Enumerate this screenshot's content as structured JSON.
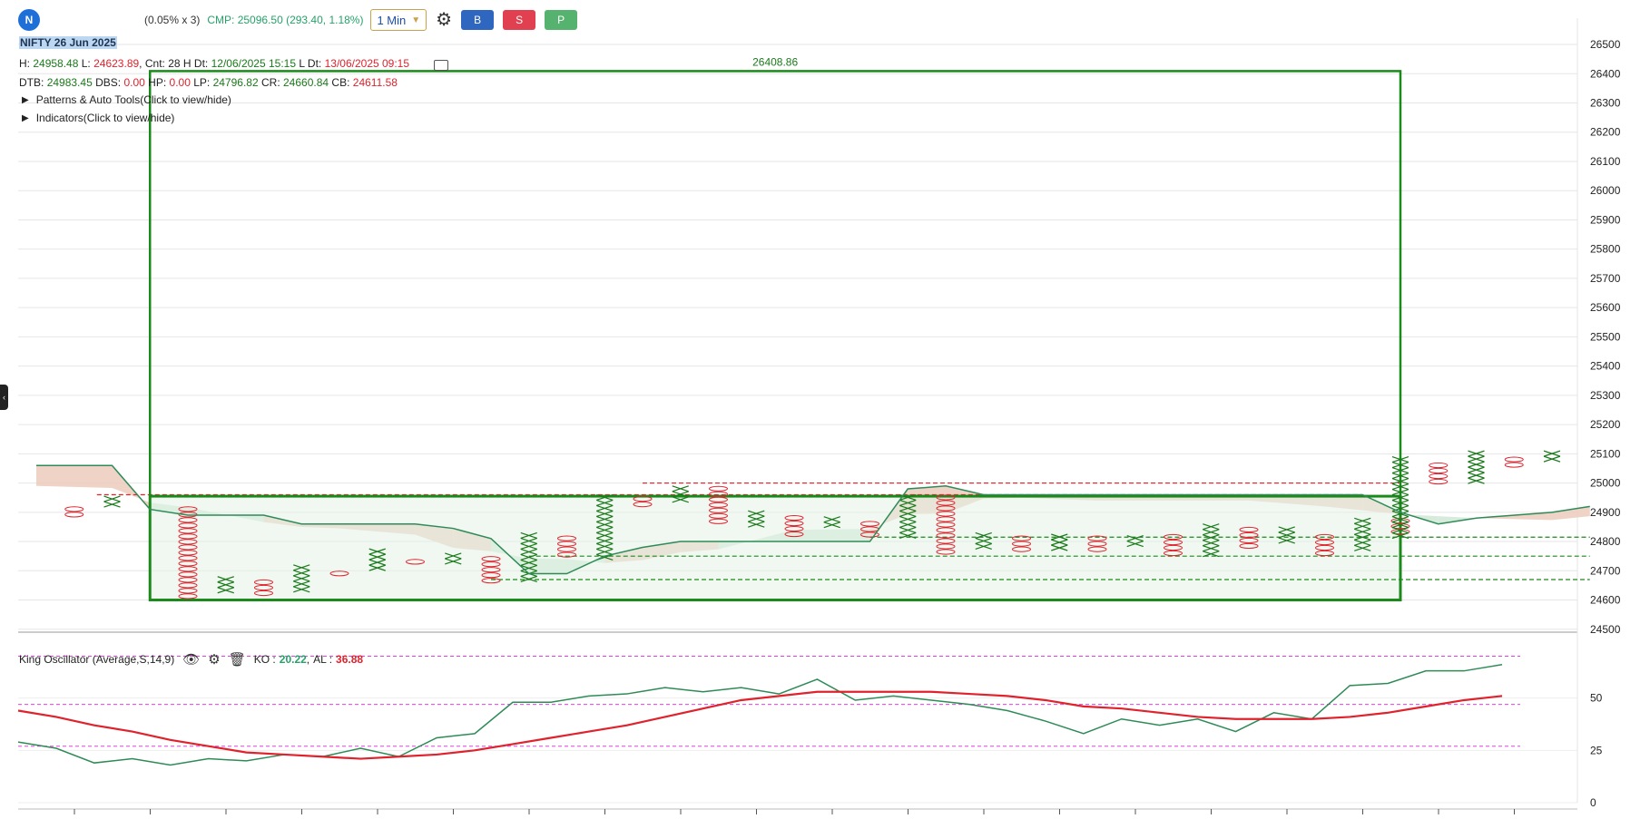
{
  "toolbar": {
    "symbol_badge": "N",
    "box_multiplier": "(0.05% x 3)",
    "cmp": "CMP: 25096.50 (293.40, 1.18%)",
    "timeframe": "1 Min",
    "buy_label": "B",
    "sell_label": "S",
    "p_label": "P"
  },
  "header": {
    "title": "NIFTY 26 Jun 2025",
    "h_label": "H:",
    "h_value": "24958.48",
    "l_label": "L:",
    "l_value": "24623.89",
    "cnt_label": "Cnt: 28",
    "hdt_label": "H Dt:",
    "hdt_value": "12/06/2025 15:15",
    "ldt_label": "L Dt:",
    "ldt_value": "13/06/2025 09:15",
    "dtb_label": "DTB:",
    "dtb_value": "24983.45",
    "dbs_label": "DBS:",
    "dbs_value": "0.00",
    "hp_label": "HP:",
    "hp_value": "0.00",
    "lp_label": "LP:",
    "lp_value": "24796.82",
    "cr_label": "CR:",
    "cr_value": "24660.84",
    "cb_label": "CB:",
    "cb_value": "24611.58"
  },
  "expanders": {
    "patterns": "Patterns & Auto Tools(Click to view/hide)",
    "indicators": "Indicators(Click to view/hide)"
  },
  "oscillator": {
    "name": "King Oscillator (Average,S,14,9)",
    "ko_label": "KO :",
    "ko_value": "20.22",
    "al_label": "AL :",
    "al_value": "36.88"
  },
  "colors": {
    "x_column": "#1a7a1a",
    "o_column": "#e0222d",
    "box": "#1a8a1a",
    "cloud_green": "#cfe8d5",
    "cloud_red": "#eccbbd",
    "ko_line": "#2e8b57",
    "al_line": "#e0222d",
    "level_magenta": "#e040e0"
  },
  "chart_data": [
    {
      "type": "point-and-figure",
      "y_ticks": [
        24500,
        24600,
        24700,
        24800,
        24900,
        25000,
        25100,
        25200,
        25300,
        25400,
        25500,
        25600,
        25700,
        25800,
        25900,
        26000,
        26100,
        26200,
        26300,
        26400,
        26500
      ],
      "ylim": [
        24490,
        26590
      ],
      "box_target_label": "26408.86",
      "box_rect": {
        "col_start": 1.5,
        "col_end": 18.0,
        "y_low": 24600,
        "y_high": 26408.86
      },
      "inner_box": {
        "col_start": 1.5,
        "col_end": 18.0,
        "y_low": 24600,
        "y_high": 24955
      },
      "columns": [
        {
          "type": "O",
          "top": 24920,
          "bottom": 24890
        },
        {
          "type": "X",
          "top": 24955,
          "bottom": 24910
        },
        {
          "type": "O",
          "top": 24920,
          "bottom": 24610
        },
        {
          "type": "X",
          "top": 24680,
          "bottom": 24620
        },
        {
          "type": "O",
          "top": 24670,
          "bottom": 24620
        },
        {
          "type": "X",
          "top": 24720,
          "bottom": 24635
        },
        {
          "type": "O",
          "top": 24700,
          "bottom": 24680
        },
        {
          "type": "X",
          "top": 24775,
          "bottom": 24700
        },
        {
          "type": "O",
          "top": 24740,
          "bottom": 24715
        },
        {
          "type": "X",
          "top": 24760,
          "bottom": 24720
        },
        {
          "type": "O",
          "top": 24750,
          "bottom": 24660
        },
        {
          "type": "X",
          "top": 24830,
          "bottom": 24660
        },
        {
          "type": "O",
          "top": 24820,
          "bottom": 24750
        },
        {
          "type": "X",
          "top": 24960,
          "bottom": 24740
        },
        {
          "type": "O",
          "top": 24955,
          "bottom": 24920
        },
        {
          "type": "X",
          "top": 24990,
          "bottom": 24940
        },
        {
          "type": "O",
          "top": 24990,
          "bottom": 24855
        },
        {
          "type": "X",
          "top": 24905,
          "bottom": 24850
        },
        {
          "type": "O",
          "top": 24890,
          "bottom": 24815
        },
        {
          "type": "X",
          "top": 24885,
          "bottom": 24850
        },
        {
          "type": "O",
          "top": 24870,
          "bottom": 24815
        },
        {
          "type": "X",
          "top": 24960,
          "bottom": 24820
        },
        {
          "type": "O",
          "top": 24960,
          "bottom": 24755
        },
        {
          "type": "X",
          "top": 24830,
          "bottom": 24780
        },
        {
          "type": "O",
          "top": 24820,
          "bottom": 24770
        },
        {
          "type": "X",
          "top": 24825,
          "bottom": 24775
        },
        {
          "type": "O",
          "top": 24820,
          "bottom": 24760
        },
        {
          "type": "X",
          "top": 24820,
          "bottom": 24775
        },
        {
          "type": "O",
          "top": 24825,
          "bottom": 24745
        },
        {
          "type": "X",
          "top": 24860,
          "bottom": 24745
        },
        {
          "type": "O",
          "top": 24850,
          "bottom": 24770
        },
        {
          "type": "X",
          "top": 24850,
          "bottom": 24790
        },
        {
          "type": "O",
          "top": 24825,
          "bottom": 24745
        },
        {
          "type": "X",
          "top": 24880,
          "bottom": 24770
        },
        {
          "type": "O",
          "top": 24880,
          "bottom": 24820
        },
        {
          "type": "X",
          "top": 25090,
          "bottom": 24810
        },
        {
          "type": "O",
          "top": 25070,
          "bottom": 24990
        },
        {
          "type": "X",
          "top": 25110,
          "bottom": 25000
        },
        {
          "type": "O",
          "top": 25090,
          "bottom": 25060
        },
        {
          "type": "X",
          "top": 25110,
          "bottom": 25070
        }
      ],
      "column_x": [
        0.5,
        1.0,
        2.0,
        2.5,
        3.0,
        3.5,
        4.0,
        4.5,
        5.0,
        5.5,
        6.0,
        6.5,
        7.0,
        7.5,
        8.0,
        8.5,
        9.0,
        9.5,
        10.0,
        10.5,
        11.0,
        11.5,
        12.0,
        12.5,
        13.0,
        13.5,
        14.0,
        14.5,
        15.0,
        15.5,
        16.0,
        16.5,
        17.0,
        17.5,
        18.0,
        18.0,
        18.5,
        19.0,
        19.5,
        20.0
      ],
      "ma_line": [
        [
          0,
          25060
        ],
        [
          1,
          25060
        ],
        [
          1.5,
          24910
        ],
        [
          2,
          24890
        ],
        [
          3,
          24890
        ],
        [
          3.5,
          24860
        ],
        [
          4,
          24860
        ],
        [
          5,
          24860
        ],
        [
          5.5,
          24845
        ],
        [
          6,
          24810
        ],
        [
          6.5,
          24690
        ],
        [
          7,
          24690
        ],
        [
          7.5,
          24750
        ],
        [
          8,
          24780
        ],
        [
          8.5,
          24800
        ],
        [
          9,
          24800
        ],
        [
          10,
          24800
        ],
        [
          11,
          24800
        ],
        [
          11.5,
          24980
        ],
        [
          12,
          24990
        ],
        [
          12.5,
          24960
        ],
        [
          13,
          24960
        ],
        [
          14,
          24960
        ],
        [
          15,
          24960
        ],
        [
          16,
          24960
        ],
        [
          17,
          24960
        ],
        [
          17.5,
          24960
        ],
        [
          18,
          24900
        ],
        [
          18.5,
          24860
        ],
        [
          19,
          24880
        ],
        [
          20,
          24900
        ],
        [
          20.5,
          24920
        ]
      ],
      "levels": [
        {
          "kind": "dashed",
          "color": "red",
          "y": 24960,
          "from": 0.8,
          "to": 17.5
        },
        {
          "kind": "dashed",
          "color": "red",
          "y": 25000,
          "from": 8.0,
          "to": 18.0
        },
        {
          "kind": "dashed",
          "color": "green",
          "y": 24815,
          "from": 11.0,
          "to": 20.5
        },
        {
          "kind": "dashed",
          "color": "green",
          "y": 24750,
          "from": 6.5,
          "to": 20.5
        },
        {
          "kind": "dashed",
          "color": "green",
          "y": 24670,
          "from": 6.0,
          "to": 20.5
        }
      ]
    },
    {
      "type": "line",
      "name": "King Oscillator",
      "y_ticks": [
        0,
        25,
        50
      ],
      "ylim": [
        0,
        75
      ],
      "levels": [
        70,
        47,
        27
      ],
      "series": [
        {
          "key": "KO",
          "values": [
            29,
            26,
            19,
            21,
            18,
            21,
            20,
            23,
            22,
            26,
            22,
            31,
            33,
            48,
            48,
            51,
            52,
            55,
            53,
            55,
            52,
            59,
            49,
            51,
            49,
            47,
            44,
            39,
            33,
            40,
            37,
            40,
            34,
            43,
            40,
            56,
            57,
            63,
            63,
            66
          ]
        },
        {
          "key": "AL",
          "values": [
            44,
            41,
            37,
            34,
            30,
            27,
            24,
            23,
            22,
            21,
            22,
            23,
            25,
            28,
            31,
            34,
            37,
            41,
            45,
            49,
            51,
            53,
            53,
            53,
            53,
            52,
            51,
            49,
            46,
            45,
            43,
            41,
            40,
            40,
            40,
            41,
            43,
            46,
            49,
            51
          ]
        }
      ]
    }
  ]
}
